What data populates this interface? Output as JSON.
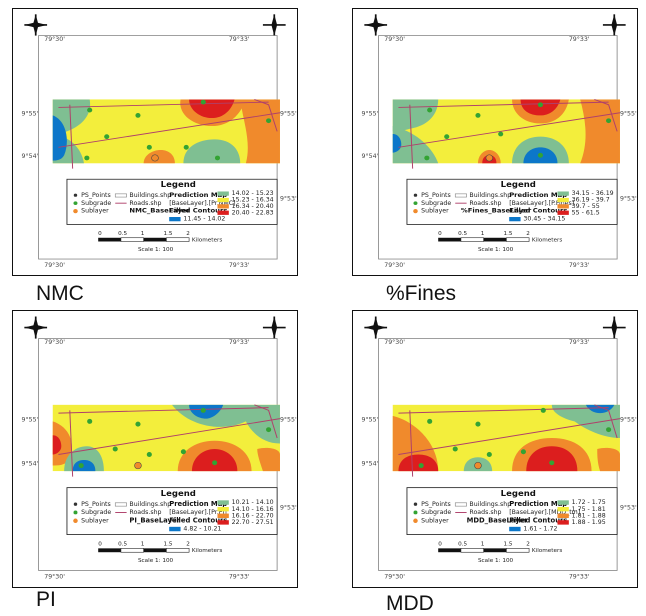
{
  "colors": {
    "band_1": "#0c77c9",
    "band_2": "#7fbf92",
    "band_3": "#f3ee3c",
    "band_4": "#f08a2c",
    "band_5": "#dc1e1e",
    "trace": "#b0406a",
    "point": "#33a333"
  },
  "maps": [
    {
      "caption": "NMC",
      "legend": {
        "title": "Legend",
        "points_label": "PS_Points",
        "subgrade_label": "Subgrade",
        "sublayer_label": "Sublayer",
        "buildings_label": "Buildings.shp",
        "roads_label": "Roads.shp",
        "prediction_label": "Prediction Map",
        "prediction_sub": "[BaseLayer].[Pr.NMC]",
        "base_layer_label": "NMC_BaseLayer",
        "filled_label": "Filled Contours",
        "ranges": [
          "11.45 - 14.02",
          "14.02 - 15.23",
          "15.23 - 16.34",
          "16.34 - 20.40",
          "20.40 - 22.83"
        ]
      }
    },
    {
      "caption": "%Fines",
      "legend": {
        "title": "Legend",
        "points_label": "PS_Points",
        "subgrade_label": "Subgrade",
        "sublayer_label": "Sublayer",
        "buildings_label": "Buildings.shp",
        "roads_label": "Roads.shp",
        "prediction_label": "Prediction Map",
        "prediction_sub": "[BaseLayer].[P.Fines]",
        "base_layer_label": "%Fines_BaseLayer",
        "filled_label": "Filled Contours",
        "ranges": [
          "30.45 - 34.15",
          "34.15 - 36.19",
          "36.19 - 39.7",
          "39.7 - 55",
          "55 - 61.5"
        ]
      }
    },
    {
      "caption": "PI",
      "legend": {
        "title": "Legend",
        "points_label": "PS_Points",
        "subgrade_label": "Subgrade",
        "sublayer_label": "Sublayer",
        "buildings_label": "Buildings.shp",
        "roads_label": "Roads.shp",
        "prediction_label": "Prediction Map",
        "prediction_sub": "[BaseLayer].[Pr.PI]",
        "base_layer_label": "PI_BaseLayer",
        "filled_label": "Filled Contours",
        "ranges": [
          "4.82 - 10.21",
          "10.21 - 14.10",
          "14.10 - 16.16",
          "16.16 - 22.70",
          "22.70 - 27.51"
        ]
      }
    },
    {
      "caption": "MDD",
      "legend": {
        "title": "Legend",
        "points_label": "PS_Points",
        "subgrade_label": "Subgrade",
        "sublayer_label": "Sublayer",
        "buildings_label": "Buildings.shp",
        "roads_label": "Roads.shp",
        "prediction_label": "Prediction Map",
        "prediction_sub": "[BaseLayer].[MDD_tm]",
        "base_layer_label": "MDD_BaseLayer",
        "filled_label": "Filled Contours",
        "ranges": [
          "1.61 - 1.72",
          "1.72 - 1.75",
          "1.75 - 1.81",
          "1.81 - 1.88",
          "1.88 - 1.95"
        ]
      }
    }
  ]
}
